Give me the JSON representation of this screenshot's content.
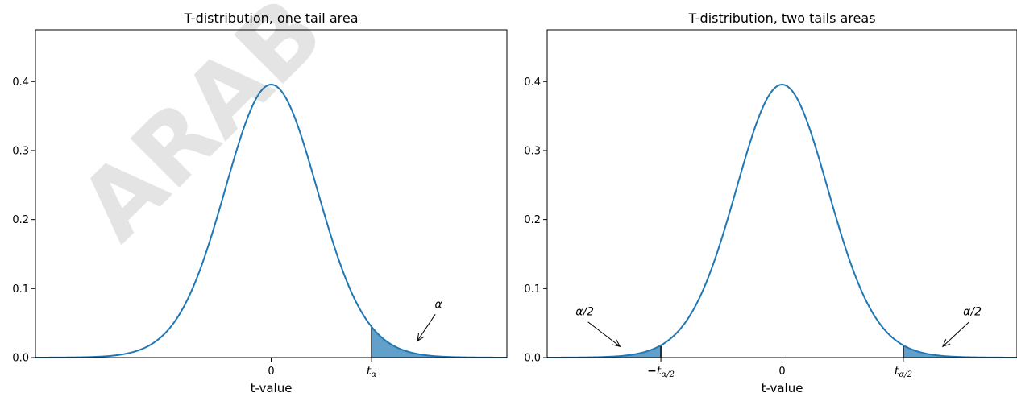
{
  "watermark": "ARAB",
  "colors": {
    "curve": "#1f77b4",
    "fill": "#1f77b4",
    "fill_opacity": 0.7
  },
  "chart_data": [
    {
      "type": "area",
      "title": "T-distribution, one tail area",
      "xlabel": "t-value",
      "ylabel": "",
      "xlim": [
        -5,
        5
      ],
      "ylim": [
        0,
        0.475
      ],
      "yticks": [
        0.0,
        0.1,
        0.2,
        0.3,
        0.4
      ],
      "ytick_labels": [
        "0.0",
        "0.1",
        "0.2",
        "0.3",
        "0.4"
      ],
      "xticks": [
        {
          "x": 0,
          "label": "0",
          "sub": "",
          "prefix": ""
        },
        {
          "x": 2.13,
          "label": "t",
          "sub": "α",
          "prefix": ""
        }
      ],
      "curve": {
        "distribution": "student-t",
        "df": 30
      },
      "shaded_regions": [
        {
          "from": 2.13,
          "to": 5
        }
      ],
      "critical_lines": [
        2.13
      ],
      "annotations": [
        {
          "text": "α",
          "xy": [
            3.1,
            0.024
          ],
          "xytext": [
            3.55,
            0.072
          ]
        }
      ]
    },
    {
      "type": "area",
      "title": "T-distribution, two tails areas",
      "xlabel": "t-value",
      "ylabel": "",
      "xlim": [
        -5,
        5
      ],
      "ylim": [
        0,
        0.475
      ],
      "yticks": [
        0.0,
        0.1,
        0.2,
        0.3,
        0.4
      ],
      "ytick_labels": [
        "0.0",
        "0.1",
        "0.2",
        "0.3",
        "0.4"
      ],
      "xticks": [
        {
          "x": -2.58,
          "label": "t",
          "sub": "α/2",
          "prefix": "−"
        },
        {
          "x": 0,
          "label": "0",
          "sub": "",
          "prefix": ""
        },
        {
          "x": 2.58,
          "label": "t",
          "sub": "α/2",
          "prefix": ""
        }
      ],
      "curve": {
        "distribution": "student-t",
        "df": 30
      },
      "shaded_regions": [
        {
          "from": -5,
          "to": -2.58
        },
        {
          "from": 2.58,
          "to": 5
        }
      ],
      "critical_lines": [
        -2.58,
        2.58
      ],
      "annotations": [
        {
          "text": "α/2",
          "xy": [
            -3.45,
            0.016
          ],
          "xytext": [
            -4.2,
            0.061
          ]
        },
        {
          "text": "α/2",
          "xy": [
            3.42,
            0.016
          ],
          "xytext": [
            4.05,
            0.061
          ]
        }
      ]
    }
  ]
}
